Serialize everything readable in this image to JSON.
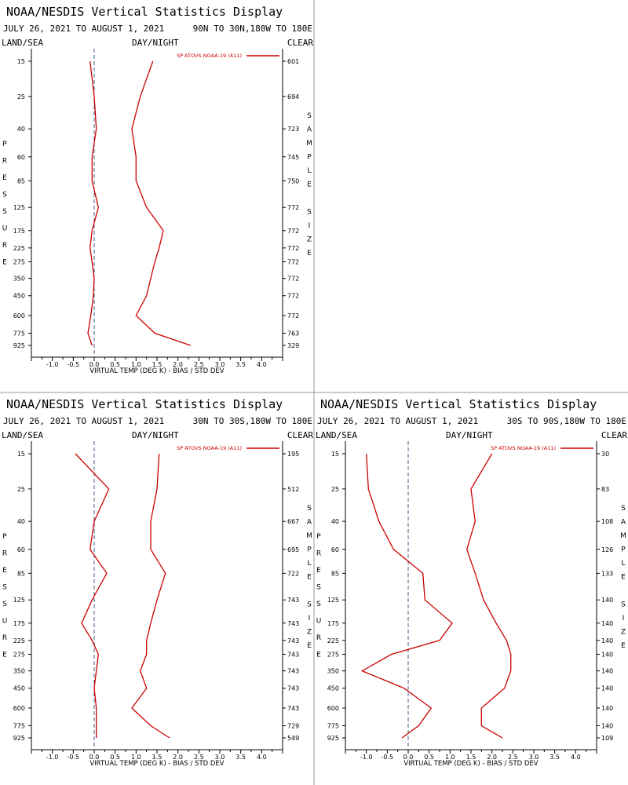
{
  "window": {
    "divider_color": "#999999"
  },
  "colors": {
    "bias": "#cc0000",
    "std": "#cc0000",
    "zero_line": "#4a5a8a",
    "text": "#000000"
  },
  "chart_data": [
    {
      "type": "line",
      "title": "NOAA/NESDIS Vertical Statistics Display",
      "date_range": "JULY 26, 2021 TO AUGUST 1, 2021",
      "region": "90N TO 30N,180W TO 180E",
      "left_header": "LAND/SEA",
      "center_header": "DAY/NIGHT",
      "right_header": "CLEAR",
      "ylabel": "PRESSURE",
      "y2label": "SAMPLE SIZE",
      "xlabel": "VIRTUAL TEMP (DEG K) - BIAS / STD DEV",
      "legend": "SP ATOVS NOAA-19 (A11)",
      "legend_position": "top-right",
      "xlim": [
        -1.5,
        4.5
      ],
      "xticks": [
        "-1.0",
        "-0.5",
        "0.0",
        "0.5",
        "1.0",
        "1.5",
        "2.0",
        "2.5",
        "3.0",
        "3.5",
        "4.0"
      ],
      "pressure_levels": [
        15,
        25,
        40,
        60,
        85,
        125,
        175,
        225,
        275,
        350,
        450,
        600,
        775,
        925
      ],
      "sample_size": [
        601,
        694,
        723,
        745,
        750,
        772,
        772,
        772,
        772,
        772,
        772,
        772,
        763,
        329
      ],
      "series": [
        {
          "name": "bias",
          "values": [
            -0.1,
            -0.0,
            0.05,
            -0.05,
            -0.05,
            0.1,
            -0.05,
            -0.1,
            -0.05,
            0.0,
            -0.02,
            -0.08,
            -0.15,
            -0.05
          ]
        },
        {
          "name": "std_dev",
          "values": [
            1.4,
            1.1,
            0.9,
            1.0,
            1.0,
            1.25,
            1.65,
            1.55,
            1.45,
            1.35,
            1.25,
            1.0,
            1.45,
            2.3
          ]
        }
      ]
    },
    {
      "type": "line",
      "title": "NOAA/NESDIS Vertical Statistics Display",
      "date_range": "JULY 26, 2021 TO AUGUST 1, 2021",
      "region": "30N TO 30S,180W TO 180E",
      "left_header": "LAND/SEA",
      "center_header": "DAY/NIGHT",
      "right_header": "CLEAR",
      "ylabel": "PRESSURE",
      "y2label": "SAMPLE SIZE",
      "xlabel": "VIRTUAL TEMP (DEG K) - BIAS / STD DEV",
      "legend": "SP ATOVS NOAA-19 (A11)",
      "legend_position": "top-right",
      "xlim": [
        -1.5,
        4.5
      ],
      "xticks": [
        "-1.0",
        "-0.5",
        "0.0",
        "0.5",
        "1.0",
        "1.5",
        "2.0",
        "2.5",
        "3.0",
        "3.5",
        "4.0"
      ],
      "pressure_levels": [
        15,
        25,
        40,
        60,
        85,
        125,
        175,
        225,
        275,
        350,
        450,
        600,
        775,
        925
      ],
      "sample_size": [
        195,
        512,
        667,
        695,
        722,
        743,
        743,
        743,
        743,
        743,
        743,
        743,
        729,
        549
      ],
      "series": [
        {
          "name": "bias",
          "values": [
            -0.45,
            0.35,
            0.0,
            -0.1,
            0.3,
            -0.05,
            -0.3,
            -0.05,
            0.1,
            0.05,
            0.0,
            0.05,
            0.05,
            0.05
          ]
        },
        {
          "name": "std_dev",
          "values": [
            1.55,
            1.5,
            1.35,
            1.35,
            1.7,
            1.5,
            1.35,
            1.25,
            1.25,
            1.1,
            1.25,
            0.9,
            1.35,
            1.8
          ]
        }
      ]
    },
    {
      "type": "line",
      "title": "NOAA/NESDIS Vertical Statistics Display",
      "date_range": "JULY 26, 2021 TO AUGUST 1, 2021",
      "region": "30S TO 90S,180W TO 180E",
      "left_header": "LAND/SEA",
      "center_header": "DAY/NIGHT",
      "right_header": "CLEAR",
      "ylabel": "PRESSURE",
      "y2label": "SAMPLE SIZE",
      "xlabel": "VIRTUAL TEMP (DEG K) - BIAS / STD DEV",
      "legend": "SP ATOVS NOAA-19 (A11)",
      "legend_position": "top-right",
      "xlim": [
        -1.5,
        4.5
      ],
      "xticks": [
        "-1.0",
        "-0.5",
        "0.0",
        "0.5",
        "1.0",
        "1.5",
        "2.0",
        "2.5",
        "3.0",
        "3.5",
        "4.0"
      ],
      "pressure_levels": [
        15,
        25,
        40,
        60,
        85,
        125,
        175,
        225,
        275,
        350,
        450,
        600,
        775,
        925
      ],
      "sample_size": [
        30,
        83,
        108,
        126,
        133,
        140,
        140,
        140,
        140,
        140,
        140,
        140,
        140,
        109
      ],
      "series": [
        {
          "name": "bias",
          "values": [
            -1.0,
            -0.95,
            -0.7,
            -0.35,
            0.35,
            0.4,
            1.05,
            0.75,
            -0.4,
            -1.1,
            -0.1,
            0.55,
            0.25,
            -0.15
          ]
        },
        {
          "name": "std_dev",
          "values": [
            2.0,
            1.5,
            1.6,
            1.4,
            1.6,
            1.8,
            2.1,
            2.35,
            2.45,
            2.45,
            2.3,
            1.75,
            1.75,
            2.25
          ]
        }
      ]
    }
  ]
}
